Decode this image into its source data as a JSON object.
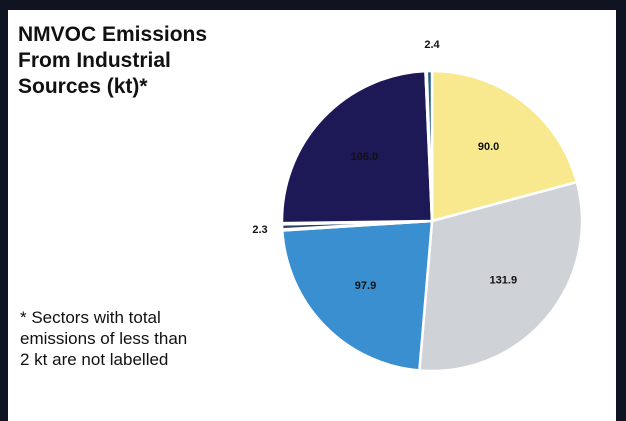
{
  "title_lines": [
    "NMVOC Emissions",
    "From Industrial",
    "Sources (kt)*"
  ],
  "footnote_lines": [
    "* Sectors with total",
    "emissions of less than",
    "2 kt are not labelled"
  ],
  "chart_data": {
    "type": "pie",
    "title": "NMVOC Emissions From Industrial Sources (kt)*",
    "start_angle_deg": 0,
    "direction": "clockwise",
    "slices": [
      {
        "label": "90.0",
        "value": 90.0,
        "color": "#f8e98f",
        "labelled": true
      },
      {
        "label": "131.9",
        "value": 131.9,
        "color": "#cfd3d8",
        "labelled": true
      },
      {
        "label": "97.9",
        "value": 97.9,
        "color": "#3a8fd1",
        "labelled": true
      },
      {
        "label": "",
        "value": 0.5,
        "color": "#7a8899",
        "labelled": false
      },
      {
        "label": "2.3",
        "value": 2.3,
        "color": "#2c3f63",
        "labelled": true
      },
      {
        "label": "",
        "value": 0.6,
        "color": "#ffffff",
        "labelled": false
      },
      {
        "label": "106.0",
        "value": 106.0,
        "color": "#1d1856",
        "labelled": true
      },
      {
        "label": "",
        "value": 0.6,
        "color": "#6a7fa0",
        "labelled": false
      },
      {
        "label": "2.4",
        "value": 2.4,
        "color": "#1f5f8b",
        "labelled": true
      }
    ],
    "footnote": "* Sectors with total emissions of less than 2 kt are not labelled"
  }
}
